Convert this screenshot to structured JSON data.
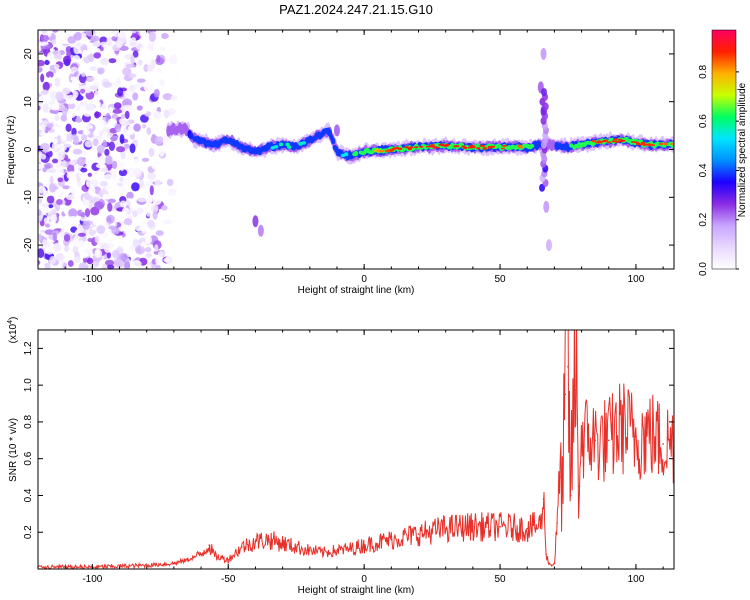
{
  "title": "PAZ1.2024.247.21.15.G10",
  "chart_data": [
    {
      "type": "heatmap",
      "xlabel": "Height of straight line (km)",
      "ylabel": "Frequency (Hz)",
      "xlim": [
        -120,
        114
      ],
      "ylim": [
        -25,
        25
      ],
      "xticks": [
        -100,
        -50,
        0,
        50,
        100
      ],
      "yticks": [
        -20,
        -10,
        0,
        10,
        20
      ],
      "colorbar": {
        "label": "Normalized spectral amplitude",
        "range": [
          0,
          0.97
        ],
        "ticks": [
          "0.0",
          "0.2",
          "0.4",
          "0.6",
          "0.8"
        ],
        "colors": [
          "#ffffff",
          "#e8d8ff",
          "#c9a5ff",
          "#8a2be2",
          "#1c00ff",
          "#0090ff",
          "#00e5ff",
          "#00ff60",
          "#c8ff00",
          "#ffb000",
          "#ff2000",
          "#ff0060"
        ]
      },
      "features": {
        "noise_region_x": [
          -120,
          -68
        ],
        "ridge": {
          "x": [
            -72,
            -66,
            -62,
            -55,
            -50,
            -45,
            -40,
            -35,
            -30,
            -25,
            -20,
            -13,
            -10,
            -5,
            0,
            10,
            20,
            30,
            40,
            50,
            60,
            65,
            68,
            75,
            85,
            95,
            105,
            114
          ],
          "freq": [
            4,
            4.5,
            2,
            1,
            2,
            0.5,
            -0.5,
            0.5,
            1,
            0.5,
            2,
            4,
            -0.5,
            -1.5,
            -0.5,
            0,
            0.5,
            0.8,
            0.5,
            0.5,
            0.5,
            1,
            1,
            0.5,
            1.5,
            2,
            1,
            1
          ],
          "peak_amplitude": [
            0.3,
            0.3,
            0.45,
            0.5,
            0.5,
            0.45,
            0.5,
            0.55,
            0.6,
            0.6,
            0.55,
            0.45,
            0.5,
            0.6,
            0.75,
            0.9,
            0.92,
            0.93,
            0.92,
            0.9,
            0.85,
            0.4,
            0.3,
            0.65,
            0.9,
            0.92,
            0.9,
            0.85
          ]
        }
      }
    },
    {
      "type": "line",
      "xlabel": "Height of straight line (km)",
      "ylabel": "SNR (10 * v/v)",
      "y_multiplier_label": "(x10",
      "y_multiplier_exp": "4",
      "xlim": [
        -120,
        114
      ],
      "ylim": [
        0,
        1.3
      ],
      "xticks": [
        -100,
        -50,
        0,
        50,
        100
      ],
      "yticks": [
        "0.2",
        "0.4",
        "0.6",
        "0.8",
        "1.0",
        "1.2"
      ],
      "series": [
        {
          "color": "#e8302a",
          "x": [
            -120,
            -100,
            -80,
            -70,
            -65,
            -60,
            -57,
            -55,
            -50,
            -45,
            -40,
            -35,
            -30,
            -25,
            -20,
            -15,
            -10,
            -5,
            0,
            10,
            20,
            30,
            40,
            50,
            60,
            65,
            66,
            67,
            68,
            69,
            70,
            71,
            72,
            73,
            74,
            75,
            76,
            77,
            78,
            79,
            80,
            85,
            90,
            95,
            100,
            105,
            110,
            114
          ],
          "values": [
            0.01,
            0.01,
            0.02,
            0.03,
            0.05,
            0.08,
            0.13,
            0.07,
            0.05,
            0.12,
            0.15,
            0.16,
            0.14,
            0.12,
            0.1,
            0.09,
            0.1,
            0.11,
            0.13,
            0.16,
            0.19,
            0.22,
            0.23,
            0.23,
            0.22,
            0.24,
            0.38,
            0.08,
            0.03,
            0.02,
            0.03,
            0.25,
            0.5,
            0.45,
            0.95,
            1.1,
            0.4,
            0.9,
            1.05,
            0.45,
            0.72,
            0.7,
            0.7,
            0.78,
            0.72,
            0.74,
            0.68,
            0.7
          ]
        }
      ]
    }
  ]
}
